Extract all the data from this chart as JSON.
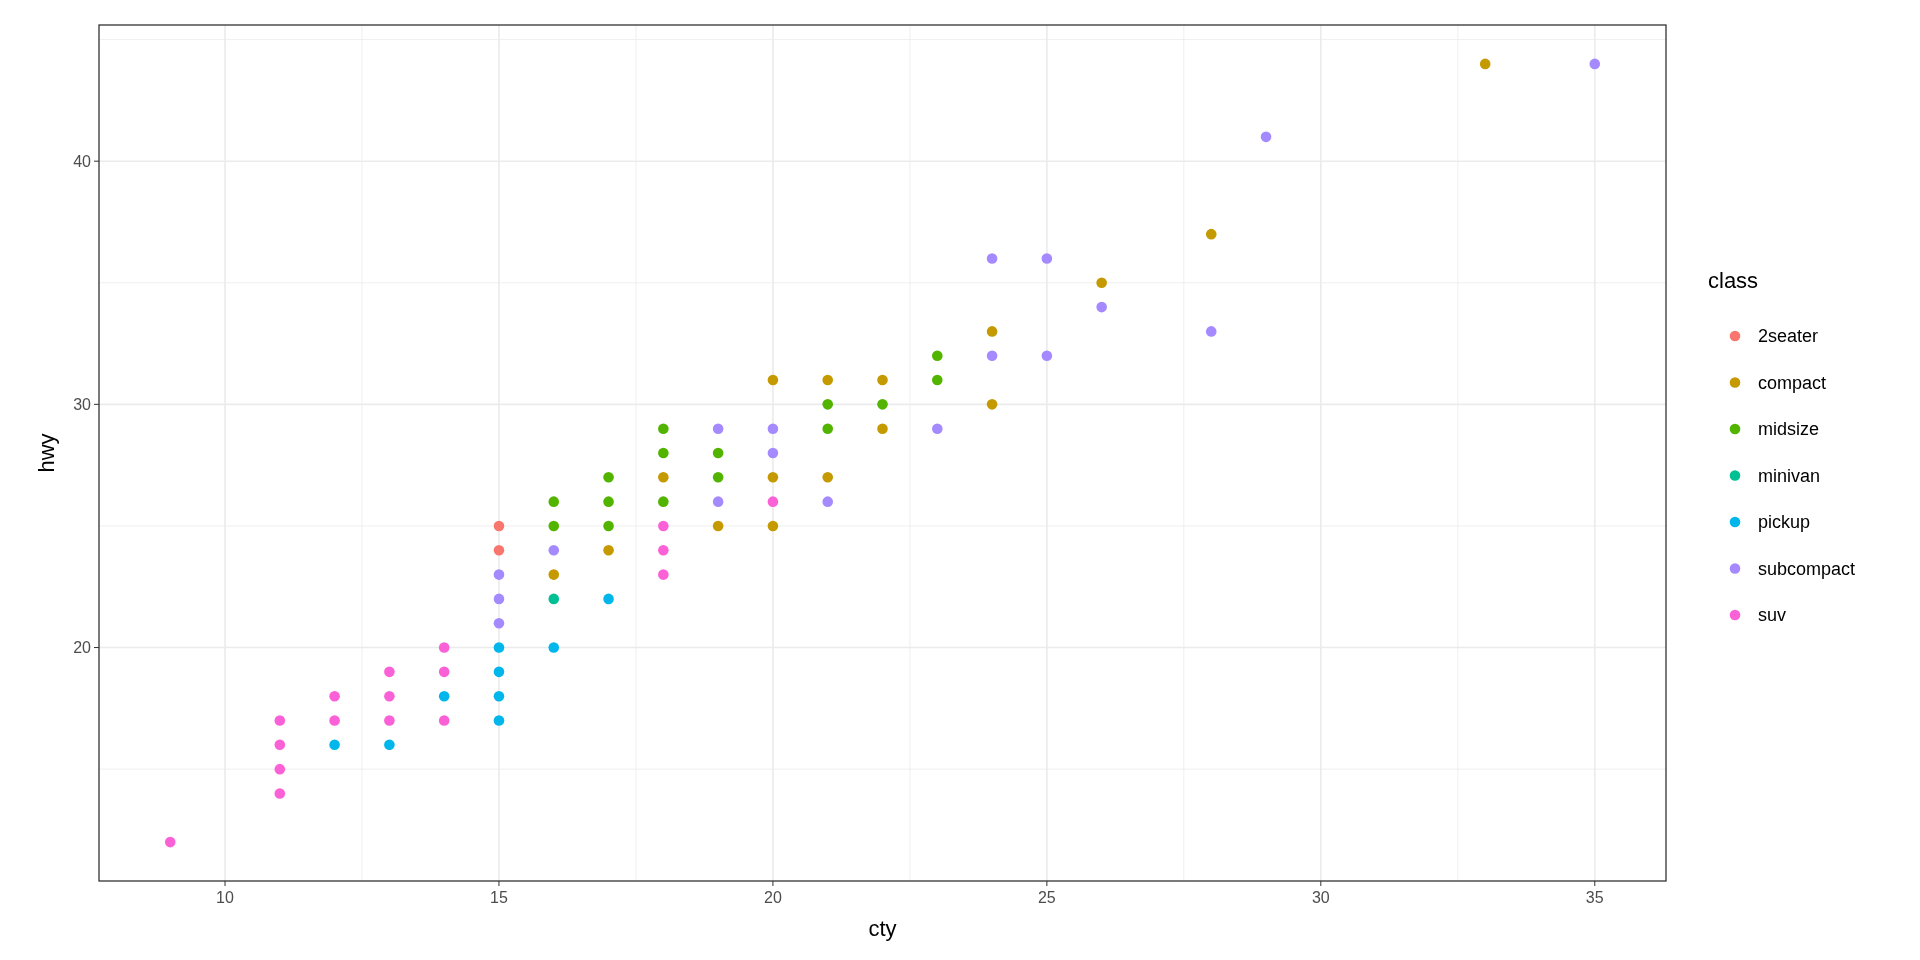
{
  "chart_data": {
    "type": "scatter",
    "xlabel": "cty",
    "ylabel": "hwy",
    "legend_title": "class",
    "legend": "right",
    "grid": true,
    "marker": "circle",
    "xlim": [
      7.7,
      36.3
    ],
    "ylim": [
      10.4,
      45.6
    ],
    "xticks": [
      10,
      15,
      20,
      25,
      30,
      35
    ],
    "yticks": [
      20,
      30,
      40
    ],
    "series": [
      {
        "name": "2seater",
        "color": "#f8766d",
        "x": [
          15,
          15
        ],
        "values": [
          24,
          25
        ]
      },
      {
        "name": "compact",
        "color": "#c49a00",
        "x": [
          33,
          28,
          26,
          24,
          24,
          22,
          22,
          21,
          21,
          20,
          20,
          20,
          19,
          18,
          17,
          16
        ],
        "values": [
          44,
          37,
          35,
          33,
          30,
          31,
          29,
          31,
          27,
          31,
          27,
          25,
          25,
          27,
          24,
          23
        ]
      },
      {
        "name": "midsize",
        "color": "#53b400",
        "x": [
          23,
          23,
          22,
          21,
          21,
          19,
          19,
          18,
          18,
          18,
          17,
          17,
          17,
          16,
          16
        ],
        "values": [
          32,
          31,
          30,
          30,
          29,
          28,
          27,
          29,
          28,
          26,
          27,
          26,
          25,
          26,
          25
        ]
      },
      {
        "name": "minivan",
        "color": "#00c094",
        "x": [
          16
        ],
        "values": [
          22
        ]
      },
      {
        "name": "pickup",
        "color": "#00b6eb",
        "x": [
          17,
          16,
          15,
          15,
          15,
          15,
          14,
          13,
          12
        ],
        "values": [
          22,
          20,
          20,
          19,
          18,
          17,
          18,
          16,
          16
        ]
      },
      {
        "name": "subcompact",
        "color": "#a58aff",
        "x": [
          35,
          29,
          28,
          26,
          25,
          25,
          24,
          24,
          23,
          21,
          20,
          20,
          19,
          19,
          16,
          15,
          15,
          15
        ],
        "values": [
          44,
          41,
          33,
          34,
          36,
          32,
          36,
          32,
          29,
          26,
          29,
          28,
          29,
          26,
          24,
          23,
          22,
          21
        ]
      },
      {
        "name": "suv",
        "color": "#fb61d7",
        "x": [
          20,
          18,
          18,
          18,
          14,
          14,
          14,
          13,
          13,
          13,
          12,
          12,
          11,
          11,
          11,
          11,
          9
        ],
        "values": [
          26,
          25,
          24,
          23,
          20,
          19,
          17,
          19,
          18,
          17,
          18,
          17,
          17,
          16,
          15,
          14,
          12
        ]
      }
    ]
  }
}
